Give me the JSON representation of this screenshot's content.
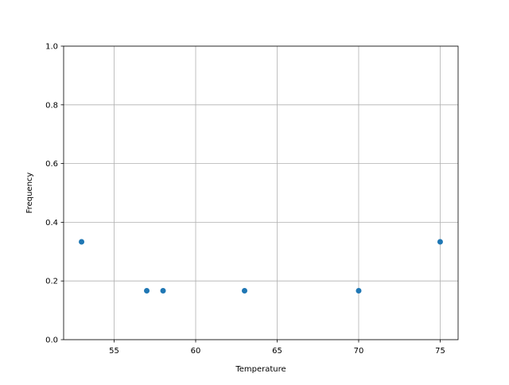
{
  "chart_data": {
    "type": "scatter",
    "title": "",
    "xlabel": "Temperature",
    "ylabel": "Frequency",
    "xlim": [
      51.9,
      76.1
    ],
    "ylim": [
      0.0,
      1.0
    ],
    "xticks": [
      55,
      60,
      65,
      70,
      75
    ],
    "xtick_labels": [
      "55",
      "60",
      "65",
      "70",
      "75"
    ],
    "yticks": [
      0.0,
      0.2,
      0.4,
      0.6,
      0.8,
      1.0
    ],
    "ytick_labels": [
      "0.0",
      "0.2",
      "0.4",
      "0.6",
      "0.8",
      "1.0"
    ],
    "grid": true,
    "color": "#1f77b4",
    "points": [
      {
        "x": 53,
        "y": 0.3333
      },
      {
        "x": 57,
        "y": 0.1667
      },
      {
        "x": 58,
        "y": 0.1667
      },
      {
        "x": 63,
        "y": 0.1667
      },
      {
        "x": 70,
        "y": 0.1667
      },
      {
        "x": 75,
        "y": 0.3333
      }
    ]
  }
}
